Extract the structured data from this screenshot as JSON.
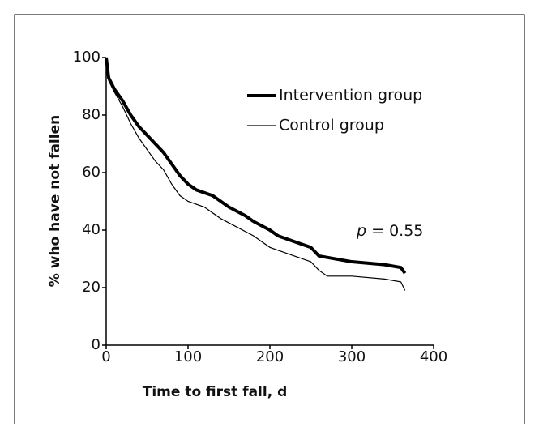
{
  "chart_data": {
    "type": "step",
    "xlabel": "Time to first fall, d",
    "ylabel": "% who have not fallen",
    "annotation": {
      "italic": "p",
      "text": "= 0.55"
    },
    "xlim": [
      0,
      400
    ],
    "xticks": [
      0,
      100,
      200,
      300,
      400
    ],
    "ylim": [
      0,
      100
    ],
    "yticks": [
      0,
      20,
      40,
      60,
      80,
      100
    ],
    "series": [
      {
        "name": "Intervention group",
        "color": "#000000",
        "width": 4,
        "x": [
          0,
          3,
          10,
          20,
          30,
          40,
          50,
          60,
          70,
          80,
          90,
          100,
          110,
          130,
          150,
          170,
          180,
          200,
          210,
          230,
          250,
          260,
          300,
          340,
          360,
          365
        ],
        "values": [
          100,
          93,
          89,
          85,
          80,
          76,
          73,
          70,
          67,
          63,
          59,
          56,
          54,
          52,
          48,
          45,
          43,
          40,
          38,
          36,
          34,
          31,
          29,
          28,
          27,
          25
        ]
      },
      {
        "name": "Control group",
        "color": "#000000",
        "width": 1.2,
        "x": [
          0,
          3,
          10,
          20,
          30,
          40,
          50,
          60,
          70,
          80,
          90,
          100,
          120,
          140,
          160,
          180,
          200,
          220,
          250,
          260,
          270,
          300,
          340,
          360,
          365
        ],
        "values": [
          100,
          92,
          88,
          83,
          77,
          72,
          68,
          64,
          61,
          56,
          52,
          50,
          48,
          44,
          41,
          38,
          34,
          32,
          29,
          26,
          24,
          24,
          23,
          22,
          19
        ]
      }
    ]
  }
}
